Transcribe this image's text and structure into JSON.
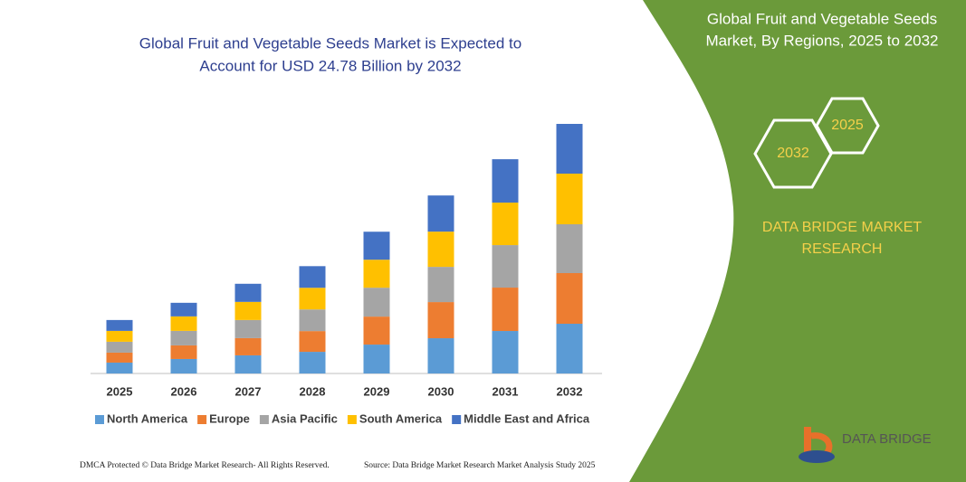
{
  "chart_data": {
    "type": "stacked-bar",
    "title": [
      "Global Fruit and Vegetable Seeds Market is Expected to",
      "Account for USD 24.78 Billion by 2032"
    ],
    "categories": [
      "2025",
      "2026",
      "2027",
      "2028",
      "2029",
      "2030",
      "2031",
      "2032"
    ],
    "series": [
      {
        "name": "North America",
        "color": "#5b9bd5",
        "values": [
          1.08,
          1.44,
          1.8,
          2.15,
          2.87,
          3.5,
          4.22,
          4.94
        ]
      },
      {
        "name": "Europe",
        "color": "#ed7d31",
        "values": [
          0.99,
          1.35,
          1.71,
          2.06,
          2.78,
          3.59,
          4.31,
          5.03
        ]
      },
      {
        "name": "Asia Pacific",
        "color": "#a5a5a5",
        "values": [
          1.08,
          1.44,
          1.8,
          2.15,
          2.87,
          3.5,
          4.22,
          4.85
        ]
      },
      {
        "name": "South America",
        "color": "#ffc000",
        "values": [
          1.08,
          1.44,
          1.8,
          2.15,
          2.78,
          3.5,
          4.22,
          5.03
        ]
      },
      {
        "name": "Middle East and Africa",
        "color": "#4472c4",
        "values": [
          1.08,
          1.35,
          1.8,
          2.15,
          2.78,
          3.59,
          4.31,
          4.94
        ]
      }
    ]
  },
  "panel": {
    "title": [
      "Global Fruit and Vegetable Seeds",
      "Market, By Regions, 2025 to 2032"
    ],
    "hexagons": [
      "2025",
      "2032"
    ],
    "brand": [
      "DATA BRIDGE MARKET",
      "RESEARCH"
    ]
  },
  "logo": "DATA BRIDGE",
  "footer": {
    "left": "DMCA Protected © Data Bridge Market Research-  All Rights Reserved.",
    "right": "Source: Data Bridge Market Research  Market Analysis Study 2025"
  }
}
